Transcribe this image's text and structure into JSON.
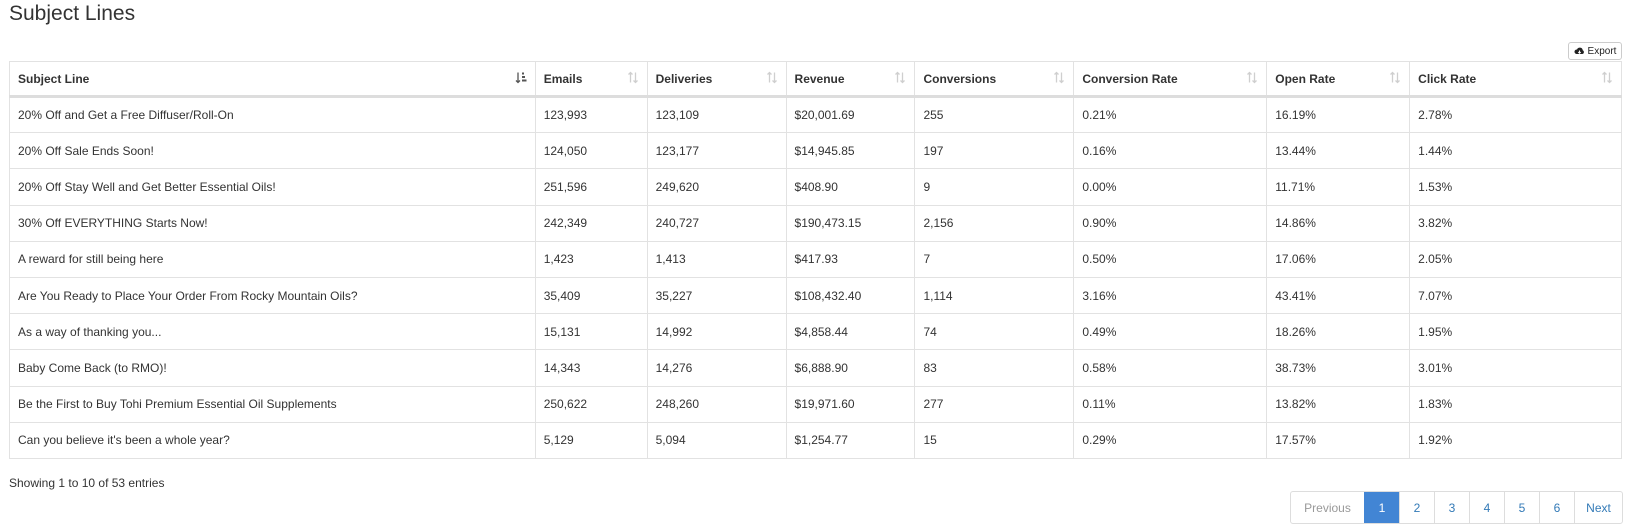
{
  "page": {
    "title": "Subject Lines"
  },
  "toolbar": {
    "export_label": "Export",
    "export_icon": "cloud-download-icon"
  },
  "table": {
    "columns": [
      {
        "label": "Subject Line",
        "sort": "sort-ascending-icon"
      },
      {
        "label": "Emails",
        "sort": "sort-both-icon"
      },
      {
        "label": "Deliveries",
        "sort": "sort-both-icon"
      },
      {
        "label": "Revenue",
        "sort": "sort-both-icon"
      },
      {
        "label": "Conversions",
        "sort": "sort-both-icon"
      },
      {
        "label": "Conversion Rate",
        "sort": "sort-both-icon"
      },
      {
        "label": "Open Rate",
        "sort": "sort-both-icon"
      },
      {
        "label": "Click Rate",
        "sort": "sort-both-icon"
      }
    ],
    "rows": [
      [
        "20% Off and Get a Free Diffuser/Roll-On",
        "123,993",
        "123,109",
        "$20,001.69",
        "255",
        "0.21%",
        "16.19%",
        "2.78%"
      ],
      [
        "20% Off Sale Ends Soon!",
        "124,050",
        "123,177",
        "$14,945.85",
        "197",
        "0.16%",
        "13.44%",
        "1.44%"
      ],
      [
        "20% Off Stay Well and Get Better Essential Oils!",
        "251,596",
        "249,620",
        "$408.90",
        "9",
        "0.00%",
        "11.71%",
        "1.53%"
      ],
      [
        "30% Off EVERYTHING Starts Now!",
        "242,349",
        "240,727",
        "$190,473.15",
        "2,156",
        "0.90%",
        "14.86%",
        "3.82%"
      ],
      [
        "A reward for still being here",
        "1,423",
        "1,413",
        "$417.93",
        "7",
        "0.50%",
        "17.06%",
        "2.05%"
      ],
      [
        "Are You Ready to Place Your Order From Rocky Mountain Oils?",
        "35,409",
        "35,227",
        "$108,432.40",
        "1,114",
        "3.16%",
        "43.41%",
        "7.07%"
      ],
      [
        "As a way of thanking you...",
        "15,131",
        "14,992",
        "$4,858.44",
        "74",
        "0.49%",
        "18.26%",
        "1.95%"
      ],
      [
        "Baby Come Back (to RMO)!",
        "14,343",
        "14,276",
        "$6,888.90",
        "83",
        "0.58%",
        "38.73%",
        "3.01%"
      ],
      [
        "Be the First to Buy Tohi Premium Essential Oil Supplements",
        "250,622",
        "248,260",
        "$19,971.60",
        "277",
        "0.11%",
        "13.82%",
        "1.83%"
      ],
      [
        "Can you believe it's been a whole year?",
        "5,129",
        "5,094",
        "$1,254.77",
        "15",
        "0.29%",
        "17.57%",
        "1.92%"
      ]
    ]
  },
  "footer": {
    "status": "Showing 1 to 10 of 53 entries"
  },
  "pagination": {
    "previous_label": "Previous",
    "next_label": "Next",
    "pages": [
      "1",
      "2",
      "3",
      "4",
      "5",
      "6"
    ],
    "current": "1"
  },
  "colors": {
    "active_page": "#4285d4",
    "link": "#337ab7",
    "border": "#dddddd"
  }
}
